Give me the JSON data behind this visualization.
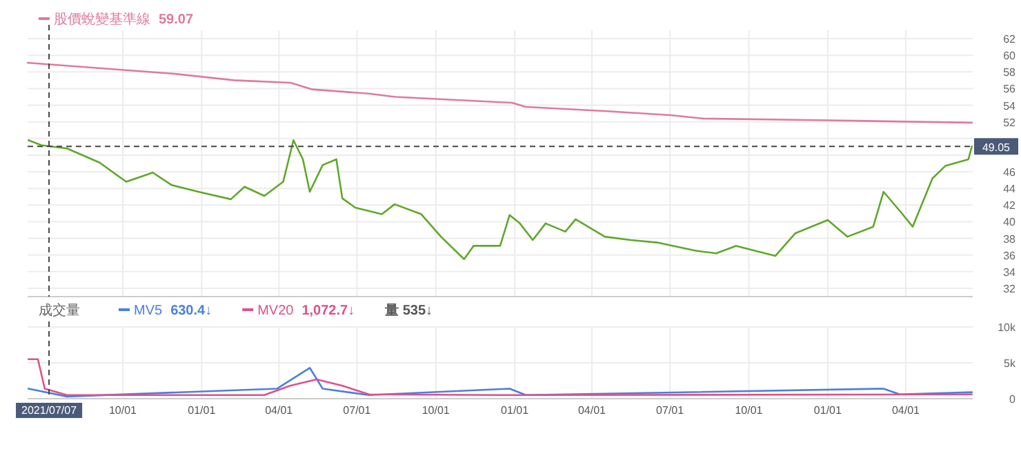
{
  "chart_data": [
    {
      "type": "line",
      "xlim": [
        "2021-06-12",
        "2024-06-18"
      ],
      "ylim": [
        31,
        63
      ],
      "yticks": [
        32,
        34,
        36,
        38,
        40,
        42,
        44,
        46,
        {
          "value": 48,
          "label": null
        },
        {
          "value": 50,
          "label": null
        },
        52,
        54,
        56,
        58,
        60,
        62
      ],
      "xticks": [
        {
          "value": "2021-10-01",
          "label": null
        },
        {
          "value": "2022-01-01",
          "label": null
        },
        {
          "value": "2022-04-01",
          "label": null
        },
        {
          "value": "2022-07-01",
          "label": null
        },
        {
          "value": "2022-10-01",
          "label": null
        },
        {
          "value": "2023-01-01",
          "label": null
        },
        {
          "value": "2023-04-01",
          "label": null
        },
        {
          "value": "2023-07-01",
          "label": null
        },
        {
          "value": "2023-10-01",
          "label": null
        },
        {
          "value": "2024-01-01",
          "label": null
        },
        {
          "value": "2024-04-01",
          "label": null
        }
      ],
      "tick_labels": "y",
      "grid": true,
      "legend": "top left",
      "series": [
        {
          "color": "#5fa82a",
          "x": [
            "2021-06-13",
            "2021-06-28",
            "2021-07-28",
            "2021-09-04",
            "2021-10-05",
            "2021-11-05",
            "2021-11-27",
            "2021-12-28",
            "2022-02-04",
            "2022-02-20",
            "2022-03-15",
            "2022-04-06",
            "2022-04-18",
            "2022-04-29",
            "2022-05-07",
            "2022-05-22",
            "2022-06-07",
            "2022-06-14",
            "2022-06-29",
            "2022-07-30",
            "2022-08-14",
            "2022-09-14",
            "2022-10-07",
            "2022-11-03",
            "2022-11-14",
            "2022-12-15",
            "2022-12-26",
            "2023-01-07",
            "2023-01-22",
            "2023-02-06",
            "2023-03-01",
            "2023-03-13",
            "2023-04-16",
            "2023-05-16",
            "2023-06-16",
            "2023-08-01",
            "2023-08-24",
            "2023-09-16",
            "2023-10-16",
            "2023-11-01",
            "2023-11-24",
            "2024-01-01",
            "2024-01-24",
            "2024-02-23",
            "2024-03-06",
            "2024-03-25",
            "2024-04-09",
            "2024-05-02",
            "2024-05-17",
            "2024-06-13",
            "2024-06-17"
          ],
          "values": [
            49.8,
            49.2,
            48.8,
            47.1,
            44.8,
            45.9,
            44.4,
            43.6,
            42.7,
            44.2,
            43.1,
            44.8,
            49.8,
            47.5,
            43.6,
            46.8,
            47.5,
            42.8,
            41.7,
            40.9,
            42.1,
            40.9,
            38.2,
            35.5,
            37.1,
            37.1,
            40.8,
            39.8,
            37.8,
            39.8,
            38.8,
            40.3,
            38.2,
            37.8,
            37.5,
            36.5,
            36.2,
            37.1,
            36.3,
            35.9,
            38.6,
            40.2,
            38.2,
            39.4,
            43.6,
            41.3,
            39.4,
            45.2,
            46.7,
            47.5,
            49.05
          ]
        },
        {
          "name": "股價蛻變基準線",
          "color": "#e07a9c",
          "x": [
            "2021-06-12",
            "2021-11-28",
            "2022-02-08",
            "2022-04-15",
            "2022-05-10",
            "2022-07-15",
            "2022-08-15",
            "2022-12-29",
            "2023-01-14",
            "2023-04-16",
            "2023-07-02",
            "2023-08-09",
            "2023-12-24",
            "2024-06-17"
          ],
          "values": [
            59.1,
            57.8,
            57.0,
            56.7,
            55.9,
            55.4,
            55.0,
            54.3,
            53.8,
            53.3,
            52.8,
            52.4,
            52.2,
            51.9
          ]
        }
      ],
      "annotations": [
        "59.07"
      ],
      "ref_lines": [
        {
          "axis": "y",
          "value": 49.05,
          "label": "49.05",
          "line_style": "dashed"
        },
        {
          "axis": "x",
          "value": "2021-07-07",
          "label": null,
          "line_style": "dashed"
        }
      ]
    },
    {
      "type": "line",
      "title": "成交量",
      "xlim": [
        "2021-06-12",
        "2024-06-18"
      ],
      "ylim": [
        0,
        10000
      ],
      "yticks": [
        0,
        {
          "value": 5000,
          "label": "5k"
        },
        {
          "value": 10000,
          "label": "10k"
        }
      ],
      "xticks": [
        {
          "value": "2021-10-01",
          "label": "10/01"
        },
        {
          "value": "2022-01-01",
          "label": "01/01"
        },
        {
          "value": "2022-04-01",
          "label": "04/01"
        },
        {
          "value": "2022-07-01",
          "label": "07/01"
        },
        {
          "value": "2022-10-01",
          "label": "10/01"
        },
        {
          "value": "2023-01-01",
          "label": "01/01"
        },
        {
          "value": "2023-04-01",
          "label": "04/01"
        },
        {
          "value": "2023-07-01",
          "label": "07/01"
        },
        {
          "value": "2023-10-01",
          "label": "10/01"
        },
        {
          "value": "2024-01-01",
          "label": "01/01"
        },
        {
          "value": "2024-04-01",
          "label": "04/01"
        }
      ],
      "grid": true,
      "legend": "top left",
      "series": [
        {
          "name": "MV5",
          "color": "#4a7fe0",
          "x": [
            "2021-06-13",
            "2021-07-28",
            "2022-03-30",
            "2022-05-07",
            "2022-05-22",
            "2022-07-15",
            "2022-12-26",
            "2023-01-14",
            "2024-03-06",
            "2024-03-25",
            "2024-06-17"
          ],
          "values": [
            1400,
            300,
            1400,
            4300,
            1400,
            500,
            1400,
            500,
            1400,
            600,
            900
          ]
        },
        {
          "name": "MV20",
          "color": "#e0508a",
          "x": [
            "2021-06-13",
            "2021-06-24",
            "2021-07-02",
            "2021-07-28",
            "2022-03-15",
            "2022-04-14",
            "2022-05-15",
            "2022-06-14",
            "2022-07-15",
            "2022-12-15",
            "2024-06-17"
          ],
          "values": [
            5500,
            5500,
            1400,
            500,
            500,
            1800,
            2700,
            1800,
            600,
            500,
            600
          ]
        }
      ],
      "annotations": [
        "630.4↓",
        "1,072.7↓",
        "量 535↓"
      ],
      "ref_lines": [
        {
          "axis": "x",
          "value": "2021-07-07",
          "label": "2021/07/07",
          "line_style": "dashed"
        }
      ]
    }
  ]
}
